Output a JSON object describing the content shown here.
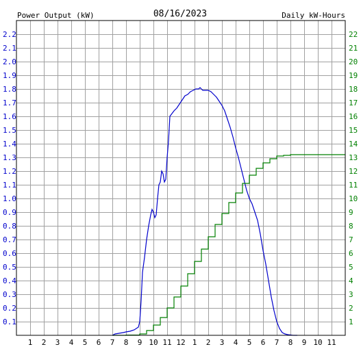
{
  "chart_data": {
    "type": "line",
    "title": "08/16/2023",
    "left_axis_label": "Power Output (kW)",
    "right_axis_label": "Daily kW-Hours",
    "colors": {
      "power": "#0000cc",
      "energy": "#008000",
      "grid": "#a0a0a0",
      "axis_text": "#000000"
    },
    "x_range": [
      0,
      24
    ],
    "x_ticks": [
      {
        "x": 1,
        "label": "1"
      },
      {
        "x": 2,
        "label": "2"
      },
      {
        "x": 3,
        "label": "3"
      },
      {
        "x": 4,
        "label": "4"
      },
      {
        "x": 5,
        "label": "5"
      },
      {
        "x": 6,
        "label": "6"
      },
      {
        "x": 7,
        "label": "7"
      },
      {
        "x": 8,
        "label": "8"
      },
      {
        "x": 9,
        "label": "9"
      },
      {
        "x": 10,
        "label": "10"
      },
      {
        "x": 11,
        "label": "11"
      },
      {
        "x": 12,
        "label": "12"
      },
      {
        "x": 13,
        "label": "1"
      },
      {
        "x": 14,
        "label": "2"
      },
      {
        "x": 15,
        "label": "3"
      },
      {
        "x": 16,
        "label": "4"
      },
      {
        "x": 17,
        "label": "5"
      },
      {
        "x": 18,
        "label": "6"
      },
      {
        "x": 19,
        "label": "7"
      },
      {
        "x": 20,
        "label": "8"
      },
      {
        "x": 21,
        "label": "9"
      },
      {
        "x": 22,
        "label": "10"
      },
      {
        "x": 23,
        "label": "11"
      }
    ],
    "y_left_range": [
      0,
      2.3
    ],
    "y_left_ticks": [
      "0.1",
      "0.2",
      "0.3",
      "0.4",
      "0.5",
      "0.6",
      "0.7",
      "0.8",
      "0.9",
      "1.0",
      "1.1",
      "1.2",
      "1.3",
      "1.4",
      "1.5",
      "1.6",
      "1.7",
      "1.8",
      "1.9",
      "2.0",
      "2.1",
      "2.2"
    ],
    "y_right_range": [
      0,
      23
    ],
    "y_right_ticks": [
      "1",
      "2",
      "3",
      "4",
      "5",
      "6",
      "7",
      "8",
      "9",
      "10",
      "11",
      "12",
      "13",
      "14",
      "15",
      "16",
      "17",
      "18",
      "19",
      "20",
      "21",
      "22"
    ],
    "grid": true,
    "series": [
      {
        "name": "Power Output (kW)",
        "axis": "left",
        "points": [
          [
            7.0,
            0
          ],
          [
            7.2,
            0.01
          ],
          [
            7.5,
            0.015
          ],
          [
            7.8,
            0.02
          ],
          [
            8.0,
            0.025
          ],
          [
            8.3,
            0.03
          ],
          [
            8.6,
            0.04
          ],
          [
            8.9,
            0.06
          ],
          [
            9.0,
            0.1
          ],
          [
            9.1,
            0.25
          ],
          [
            9.2,
            0.46
          ],
          [
            9.35,
            0.57
          ],
          [
            9.5,
            0.7
          ],
          [
            9.65,
            0.8
          ],
          [
            9.8,
            0.88
          ],
          [
            9.9,
            0.92
          ],
          [
            10.0,
            0.9
          ],
          [
            10.1,
            0.86
          ],
          [
            10.2,
            0.88
          ],
          [
            10.3,
            1.0
          ],
          [
            10.4,
            1.1
          ],
          [
            10.5,
            1.12
          ],
          [
            10.6,
            1.2
          ],
          [
            10.7,
            1.18
          ],
          [
            10.8,
            1.12
          ],
          [
            10.9,
            1.14
          ],
          [
            11.0,
            1.3
          ],
          [
            11.1,
            1.42
          ],
          [
            11.2,
            1.6
          ],
          [
            11.35,
            1.62
          ],
          [
            11.5,
            1.64
          ],
          [
            11.7,
            1.66
          ],
          [
            11.9,
            1.69
          ],
          [
            12.1,
            1.72
          ],
          [
            12.3,
            1.75
          ],
          [
            12.5,
            1.76
          ],
          [
            12.7,
            1.78
          ],
          [
            12.9,
            1.79
          ],
          [
            13.1,
            1.8
          ],
          [
            13.3,
            1.8
          ],
          [
            13.4,
            1.81
          ],
          [
            13.5,
            1.8
          ],
          [
            13.6,
            1.79
          ],
          [
            13.8,
            1.79
          ],
          [
            14.0,
            1.79
          ],
          [
            14.2,
            1.78
          ],
          [
            14.4,
            1.76
          ],
          [
            14.6,
            1.74
          ],
          [
            14.8,
            1.71
          ],
          [
            15.0,
            1.68
          ],
          [
            15.2,
            1.64
          ],
          [
            15.4,
            1.58
          ],
          [
            15.6,
            1.52
          ],
          [
            15.8,
            1.45
          ],
          [
            16.0,
            1.37
          ],
          [
            16.2,
            1.3
          ],
          [
            16.4,
            1.22
          ],
          [
            16.6,
            1.14
          ],
          [
            16.8,
            1.06
          ],
          [
            17.0,
            1.0
          ],
          [
            17.2,
            0.96
          ],
          [
            17.4,
            0.9
          ],
          [
            17.6,
            0.84
          ],
          [
            17.8,
            0.74
          ],
          [
            18.0,
            0.62
          ],
          [
            18.2,
            0.52
          ],
          [
            18.4,
            0.4
          ],
          [
            18.6,
            0.28
          ],
          [
            18.8,
            0.18
          ],
          [
            19.0,
            0.1
          ],
          [
            19.2,
            0.05
          ],
          [
            19.4,
            0.02
          ],
          [
            19.6,
            0.01
          ],
          [
            19.8,
            0.005
          ],
          [
            20.2,
            0
          ],
          [
            20.5,
            0
          ]
        ]
      },
      {
        "name": "Daily kW-Hours",
        "axis": "right",
        "points": [
          [
            7.0,
            0
          ],
          [
            8.0,
            0.02
          ],
          [
            9.0,
            0.1
          ],
          [
            9.5,
            0.35
          ],
          [
            10.0,
            0.75
          ],
          [
            10.5,
            1.3
          ],
          [
            11.0,
            2.0
          ],
          [
            11.5,
            2.8
          ],
          [
            12.0,
            3.6
          ],
          [
            12.5,
            4.5
          ],
          [
            13.0,
            5.4
          ],
          [
            13.5,
            6.3
          ],
          [
            14.0,
            7.2
          ],
          [
            14.5,
            8.1
          ],
          [
            15.0,
            8.9
          ],
          [
            15.5,
            9.7
          ],
          [
            16.0,
            10.4
          ],
          [
            16.5,
            11.1
          ],
          [
            17.0,
            11.7
          ],
          [
            17.5,
            12.2
          ],
          [
            18.0,
            12.6
          ],
          [
            18.5,
            12.9
          ],
          [
            19.0,
            13.1
          ],
          [
            19.5,
            13.15
          ],
          [
            20.0,
            13.2
          ],
          [
            21.0,
            13.2
          ],
          [
            22.0,
            13.2
          ],
          [
            23.0,
            13.2
          ],
          [
            24.0,
            13.2
          ]
        ]
      }
    ]
  }
}
